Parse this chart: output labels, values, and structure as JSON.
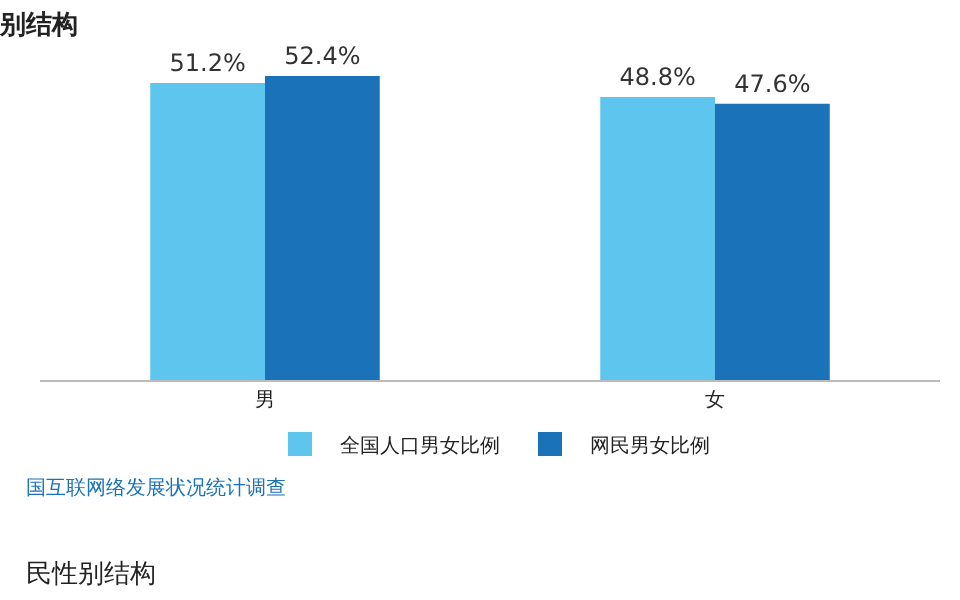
{
  "chart_data": {
    "type": "bar",
    "title": "别结构",
    "categories": [
      "男",
      "女"
    ],
    "series": [
      {
        "name": "全国人口男女比例",
        "color": "#5ec6ee",
        "values": [
          51.2,
          48.8
        ],
        "value_labels": [
          "51.2%",
          "48.8%"
        ]
      },
      {
        "name": "网民男女比例",
        "color": "#1a72b9",
        "values": [
          52.4,
          47.6
        ],
        "value_labels": [
          "52.4%",
          "47.6%"
        ]
      }
    ],
    "legend": "bottom",
    "annotations": [
      "国互联网络发展状况统计调查",
      "民性别结构"
    ]
  }
}
